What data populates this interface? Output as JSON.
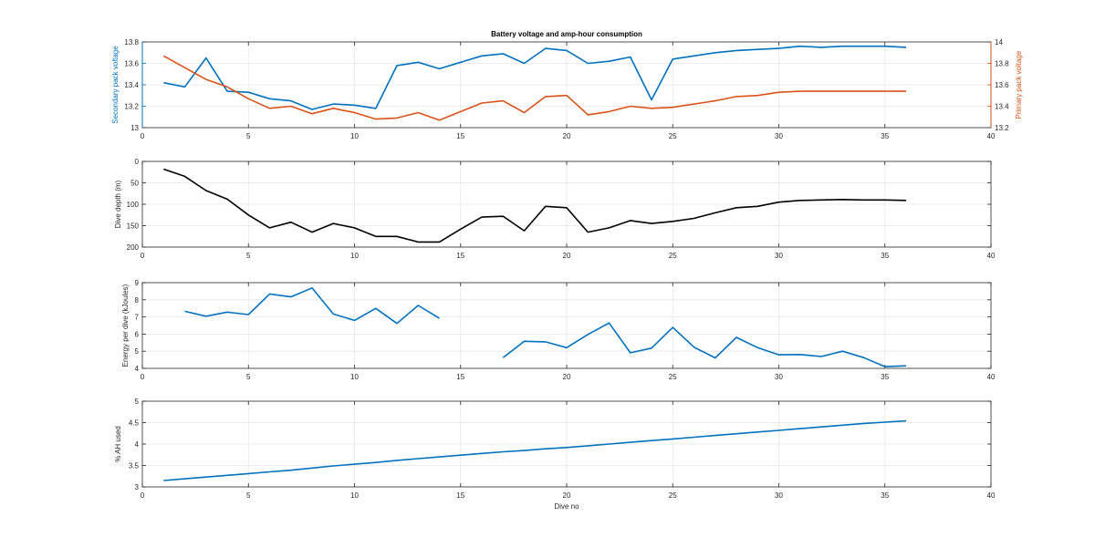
{
  "chart_data": [
    {
      "type": "line",
      "title": "Battery voltage and amp-hour consumption",
      "xlabel": "",
      "xlim": [
        0,
        40
      ],
      "xticks": [
        "0",
        "5",
        "10",
        "15",
        "20",
        "25",
        "30",
        "35",
        "40"
      ],
      "grid": true,
      "left_axis": {
        "label": "Secondary pack voltage",
        "ylim": [
          13,
          13.8
        ],
        "ticks": [
          "13",
          "13.2",
          "13.4",
          "13.6",
          "13.8"
        ],
        "color": "#0072BD"
      },
      "right_axis": {
        "label": "Primary pack voltage",
        "ylim": [
          13.2,
          14
        ],
        "ticks": [
          "13.2",
          "13.4",
          "13.6",
          "13.8",
          "14"
        ],
        "color": "#D95319"
      },
      "series": [
        {
          "axis": "left",
          "color": "#0072BD",
          "x": [
            1,
            2,
            3,
            4,
            5,
            6,
            7,
            8,
            9,
            10,
            11,
            12,
            13,
            14,
            15,
            16,
            17,
            18,
            19,
            20,
            21,
            22,
            23,
            24,
            25,
            26,
            27,
            28,
            29,
            30,
            31,
            32,
            33,
            34,
            35,
            36
          ],
          "values": [
            13.42,
            13.38,
            13.65,
            13.34,
            13.33,
            13.27,
            13.25,
            13.17,
            13.22,
            13.21,
            13.18,
            13.58,
            13.61,
            13.55,
            13.61,
            13.67,
            13.69,
            13.6,
            13.74,
            13.72,
            13.6,
            13.62,
            13.66,
            13.26,
            13.64,
            13.67,
            13.7,
            13.72,
            13.73,
            13.74,
            13.76,
            13.75,
            13.76,
            13.76,
            13.76,
            13.75
          ]
        },
        {
          "axis": "right",
          "color": "#D95319",
          "x": [
            1,
            2,
            3,
            4,
            5,
            6,
            7,
            8,
            9,
            10,
            11,
            12,
            13,
            14,
            15,
            16,
            17,
            18,
            19,
            20,
            21,
            22,
            23,
            24,
            25,
            26,
            27,
            28,
            29,
            30,
            31,
            32,
            33,
            34,
            35,
            36
          ],
          "values": [
            13.87,
            13.76,
            13.65,
            13.58,
            13.47,
            13.38,
            13.4,
            13.33,
            13.38,
            13.34,
            13.28,
            13.29,
            13.34,
            13.27,
            13.35,
            13.43,
            13.45,
            13.34,
            13.49,
            13.5,
            13.32,
            13.35,
            13.4,
            13.38,
            13.39,
            13.42,
            13.45,
            13.49,
            13.5,
            13.53,
            13.54,
            13.54,
            13.54,
            13.54,
            13.54,
            13.54
          ]
        }
      ]
    },
    {
      "type": "line",
      "ylabel": "Dive depth (m)",
      "xlim": [
        0,
        40
      ],
      "xticks": [
        "0",
        "5",
        "10",
        "15",
        "20",
        "25",
        "30",
        "35",
        "40"
      ],
      "ylim": [
        0,
        200
      ],
      "y_reversed": true,
      "yticks": [
        "0",
        "50",
        "100",
        "150",
        "200"
      ],
      "grid": true,
      "series": [
        {
          "color": "#000000",
          "x": [
            1,
            2,
            3,
            4,
            5,
            6,
            7,
            8,
            9,
            10,
            11,
            12,
            13,
            14,
            15,
            16,
            17,
            18,
            19,
            20,
            21,
            22,
            23,
            24,
            25,
            26,
            27,
            28,
            29,
            30,
            31,
            32,
            33,
            34,
            35,
            36
          ],
          "values": [
            18,
            35,
            68,
            88,
            125,
            155,
            142,
            165,
            145,
            155,
            175,
            175,
            188,
            188,
            158,
            130,
            128,
            162,
            105,
            108,
            165,
            155,
            138,
            145,
            140,
            133,
            120,
            108,
            105,
            95,
            91,
            90,
            89,
            90,
            90,
            91
          ]
        }
      ]
    },
    {
      "type": "line",
      "ylabel": "Energy per dive (kJoules)",
      "xlim": [
        0,
        40
      ],
      "xticks": [
        "0",
        "5",
        "10",
        "15",
        "20",
        "25",
        "30",
        "35",
        "40"
      ],
      "ylim": [
        4,
        9
      ],
      "yticks": [
        "4",
        "5",
        "6",
        "7",
        "8",
        "9"
      ],
      "grid": true,
      "series": [
        {
          "color": "#0072BD",
          "x": [
            2,
            3,
            4,
            5,
            6,
            7,
            8,
            9,
            10,
            11,
            12,
            13,
            14
          ],
          "values": [
            7.33,
            7.04,
            7.28,
            7.14,
            8.34,
            8.17,
            8.69,
            7.17,
            6.8,
            7.5,
            6.62,
            7.67,
            6.92
          ]
        },
        {
          "color": "#0072BD",
          "x": [
            17,
            18,
            19,
            20,
            21,
            22,
            23,
            24,
            25,
            26,
            27,
            28,
            29,
            30,
            31,
            32,
            33,
            34,
            35,
            36
          ],
          "values": [
            4.62,
            5.58,
            5.55,
            5.21,
            5.98,
            6.65,
            4.91,
            5.18,
            6.39,
            5.24,
            4.61,
            5.81,
            5.21,
            4.79,
            4.81,
            4.69,
            5.0,
            4.63,
            4.1,
            4.15
          ]
        }
      ]
    },
    {
      "type": "line",
      "xlabel": "Dive no",
      "ylabel": "% AH used",
      "xlim": [
        0,
        40
      ],
      "xticks": [
        "0",
        "5",
        "10",
        "15",
        "20",
        "25",
        "30",
        "35",
        "40"
      ],
      "ylim": [
        3,
        5
      ],
      "yticks": [
        "3",
        "3.5",
        "4",
        "4.5",
        "5"
      ],
      "grid": true,
      "series": [
        {
          "color": "#0072BD",
          "x": [
            1,
            2,
            3,
            4,
            5,
            6,
            7,
            8,
            9,
            10,
            11,
            12,
            13,
            14,
            15,
            16,
            17,
            18,
            19,
            20,
            21,
            22,
            23,
            24,
            25,
            26,
            27,
            28,
            29,
            30,
            31,
            32,
            33,
            34,
            35,
            36
          ],
          "values": [
            3.15,
            3.19,
            3.23,
            3.27,
            3.31,
            3.35,
            3.39,
            3.44,
            3.49,
            3.53,
            3.57,
            3.62,
            3.66,
            3.7,
            3.74,
            3.78,
            3.82,
            3.85,
            3.89,
            3.92,
            3.96,
            4.0,
            4.04,
            4.08,
            4.12,
            4.16,
            4.2,
            4.24,
            4.28,
            4.32,
            4.36,
            4.4,
            4.44,
            4.48,
            4.51,
            4.54
          ]
        }
      ]
    }
  ]
}
